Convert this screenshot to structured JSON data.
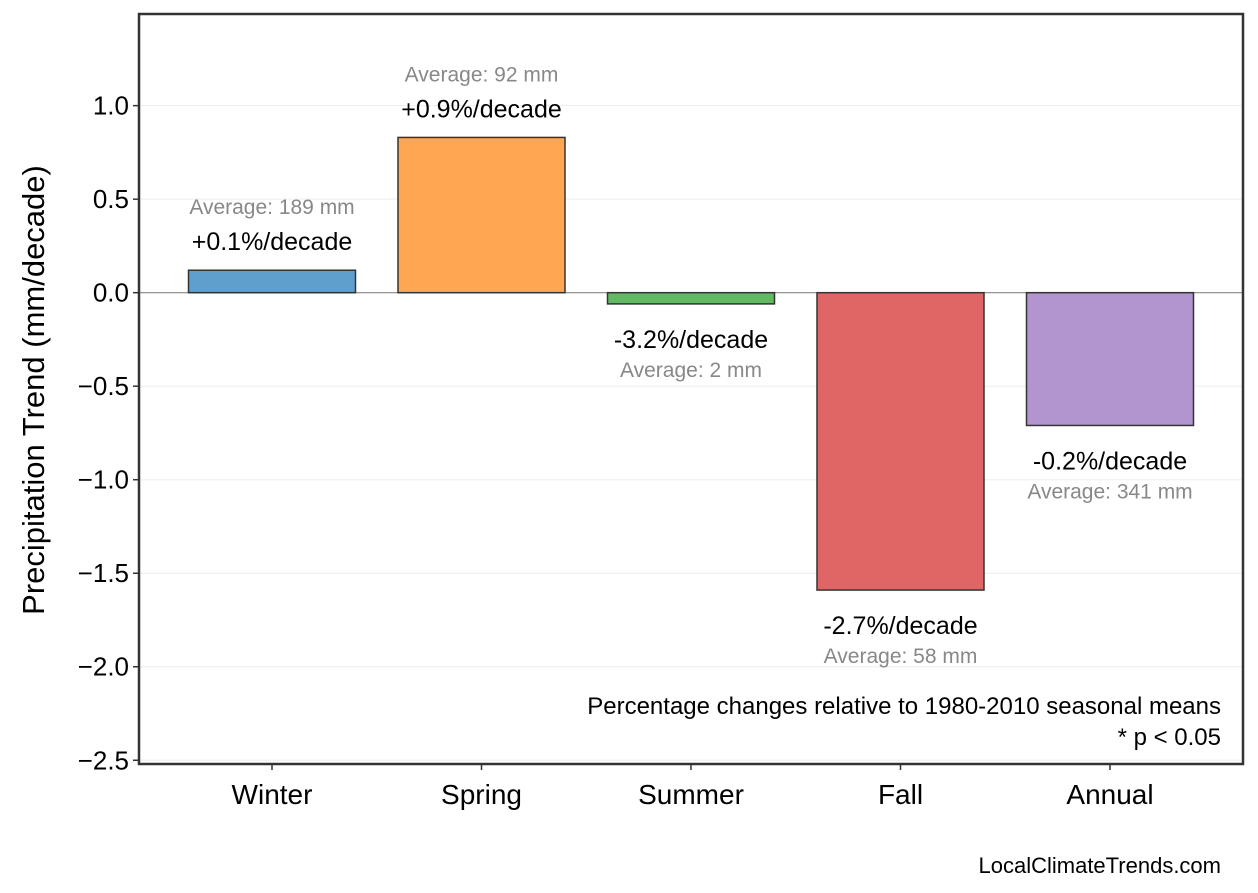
{
  "chart_data": {
    "type": "bar",
    "title": "",
    "xlabel": "",
    "ylabel": "Precipitation Trend (mm/decade)",
    "ylim": [
      -2.52,
      1.49
    ],
    "yticks": [
      1.0,
      0.5,
      0.0,
      -0.5,
      -1.0,
      -1.5,
      -2.0,
      -2.5
    ],
    "ytick_labels": [
      "1.0",
      "0.5",
      "0.0",
      "−0.5",
      "−1.0",
      "−1.5",
      "−2.0",
      "−2.5"
    ],
    "grid": true,
    "categories": [
      "Winter",
      "Spring",
      "Summer",
      "Fall",
      "Annual"
    ],
    "values": [
      0.12,
      0.83,
      -0.06,
      -1.59,
      -0.71
    ],
    "colors": [
      "#5f9fce",
      "#ffa653",
      "#61ba61",
      "#e06666",
      "#b294cf"
    ],
    "pct_labels": [
      "+0.1%/decade",
      "+0.9%/decade",
      "-3.2%/decade",
      "-2.7%/decade",
      "-0.2%/decade"
    ],
    "avg_labels": [
      "Average: 189 mm",
      "Average: 92 mm",
      "Average: 2 mm",
      "Average: 58 mm",
      "Average: 341 mm"
    ],
    "annotation": [
      "Percentage changes relative to 1980-2010 seasonal means",
      "* p < 0.05"
    ],
    "source": "LocalClimateTrends.com"
  }
}
